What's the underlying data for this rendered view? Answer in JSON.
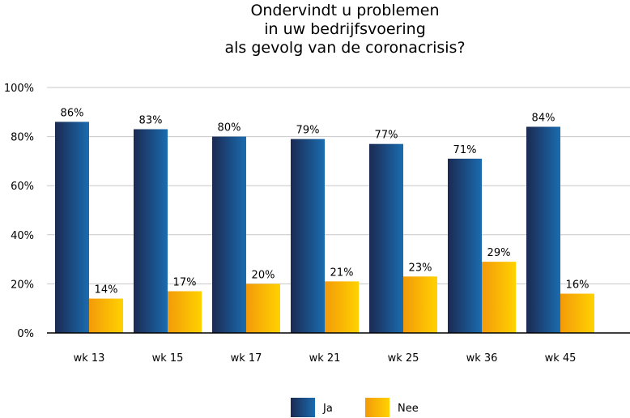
{
  "chart_data": {
    "type": "bar",
    "title": [
      "Ondervindt u problemen",
      "in uw bedrijfsvoering",
      "als gevolg van de coronacrisis?"
    ],
    "categories": [
      "wk 13",
      "wk 15",
      "wk 17",
      "wk 21",
      "wk 25",
      "wk 36",
      "wk 45"
    ],
    "series": [
      {
        "name": "Ja",
        "values": [
          86,
          83,
          80,
          79,
          77,
          71,
          84
        ],
        "labels": [
          "86%",
          "83%",
          "80%",
          "79%",
          "77%",
          "71%",
          "84%"
        ],
        "color_dark": "#1b2a52",
        "color_light": "#1a6cb0"
      },
      {
        "name": "Nee",
        "values": [
          14,
          17,
          20,
          21,
          23,
          29,
          16
        ],
        "labels": [
          "14%",
          "17%",
          "20%",
          "21%",
          "23%",
          "29%",
          "16%"
        ],
        "color_dark": "#f39a0a",
        "color_light": "#ffd200"
      }
    ],
    "ylim": [
      0,
      100
    ],
    "yticks": [
      0,
      20,
      40,
      60,
      80,
      100
    ],
    "ytick_labels": [
      "0%",
      "20%",
      "40%",
      "60%",
      "80%",
      "100%"
    ],
    "grid": true,
    "legend": "bottom-center",
    "xlabel": "",
    "ylabel": ""
  }
}
